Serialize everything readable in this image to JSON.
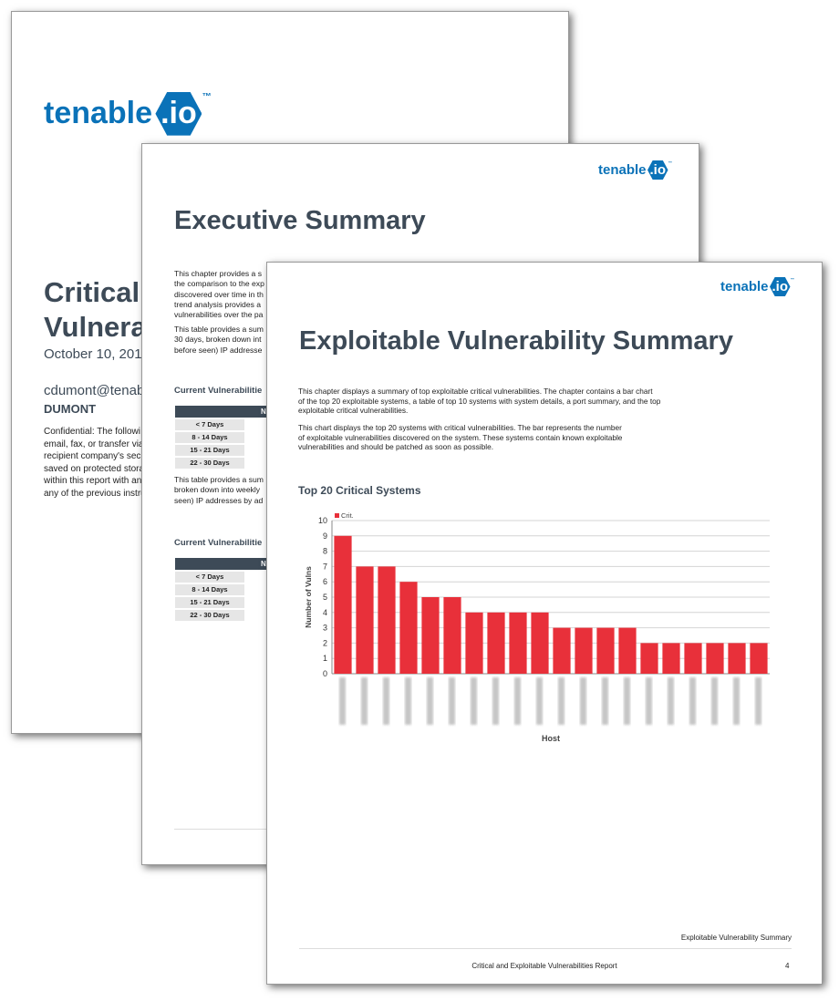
{
  "pages": [
    {
      "logo": {
        "word": "tenable",
        "badge": ".io",
        "tm": "™"
      },
      "title_lines": [
        "Critical",
        "Vulnera"
      ],
      "date": "October 10, 201",
      "email": "cdumont@tenab",
      "name": "DUMONT",
      "confidential_lines": [
        "Confidential: The followi",
        "email, fax, or transfer via",
        "recipient company's secu",
        "saved on protected stora",
        "within this report with any",
        "any of the previous instru"
      ]
    },
    {
      "logo": {
        "word": "tenable",
        "badge": ".io",
        "tm": "™"
      },
      "title": "Executive Summary",
      "para1": [
        "This chapter provides a s",
        "the comparison to the exp",
        "discovered over time in th",
        "trend analysis provides a",
        "vulnerabilities over the pa"
      ],
      "para2": [
        "This table provides a sum",
        "30 days, broken down int",
        "before seen) IP addresse"
      ],
      "table1": {
        "title": "Current Vulnerabilitie",
        "header": "N",
        "rows": [
          "< 7 Days",
          "8 - 14 Days",
          "15 - 21 Days",
          "22 - 30 Days"
        ]
      },
      "para3": [
        "This table provides a sum",
        "broken down into weekly",
        "seen) IP addresses by ad"
      ],
      "table2": {
        "title": "Current Vulnerabilitie",
        "header": "N",
        "rows": [
          "< 7 Days",
          "8 - 14 Days",
          "15 - 21 Days",
          "22 - 30 Days"
        ]
      }
    },
    {
      "logo": {
        "word": "tenable",
        "badge": ".io",
        "tm": "™"
      },
      "title": "Exploitable Vulnerability Summary",
      "para1": [
        "This chapter displays a summary of top exploitable critical vulnerabilities. The chapter contains a bar chart",
        "of the top 20 exploitable systems, a table of top 10 systems with system details, a port summary, and the top",
        "exploitable critical vulnerabilities."
      ],
      "para2": [
        "This chart displays the top 20 systems with critical vulnerabilities. The bar represents the number",
        "of exploitable vulnerabilities discovered on the system. These systems contain known exploitable",
        "vulnerabilities and should be patched as soon as possible."
      ],
      "footer_section": "Exploitable Vulnerability Summary",
      "footer_report": "Critical and Exploitable Vulnerabilities Report",
      "page_number": "4"
    }
  ],
  "chart_data": {
    "type": "bar",
    "title": "Top 20 Critical Systems",
    "x_label": "Host",
    "y_label": "Number of Vulns",
    "categories": [
      null,
      null,
      null,
      null,
      null,
      null,
      null,
      null,
      null,
      null,
      null,
      null,
      null,
      null,
      null,
      null,
      null,
      null,
      null,
      null
    ],
    "series": [
      {
        "name": "Crit.",
        "color": "#e8303a",
        "values": [
          9,
          7,
          7,
          6,
          5,
          5,
          4,
          4,
          4,
          4,
          3,
          3,
          3,
          3,
          2,
          2,
          2,
          2,
          2,
          2
        ]
      }
    ],
    "ylim": [
      0,
      10
    ],
    "yticks": [
      0,
      1,
      2,
      3,
      4,
      5,
      6,
      7,
      8,
      9,
      10
    ],
    "grid": true,
    "legend": "top-left"
  }
}
